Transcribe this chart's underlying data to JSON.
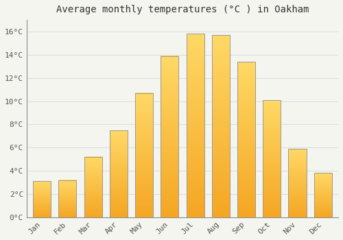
{
  "title": "Average monthly temperatures (°C ) in Oakham",
  "months": [
    "Jan",
    "Feb",
    "Mar",
    "Apr",
    "May",
    "Jun",
    "Jul",
    "Aug",
    "Sep",
    "Oct",
    "Nov",
    "Dec"
  ],
  "values": [
    3.1,
    3.2,
    5.2,
    7.5,
    10.7,
    13.9,
    15.8,
    15.7,
    13.4,
    10.1,
    5.9,
    3.8
  ],
  "bar_color_bottom": "#F5A623",
  "bar_color_top": "#FFD966",
  "bar_edge_color": "#999999",
  "background_color": "#F5F5F0",
  "grid_color": "#DDDDDD",
  "ylim": [
    0,
    17
  ],
  "yticks": [
    0,
    2,
    4,
    6,
    8,
    10,
    12,
    14,
    16
  ],
  "ytick_labels": [
    "0°C",
    "2°C",
    "4°C",
    "6°C",
    "8°C",
    "10°C",
    "12°C",
    "14°C",
    "16°C"
  ],
  "title_fontsize": 10,
  "tick_fontsize": 8,
  "font_family": "monospace",
  "bar_width": 0.7,
  "figsize": [
    5.0,
    3.5
  ],
  "dpi": 100
}
